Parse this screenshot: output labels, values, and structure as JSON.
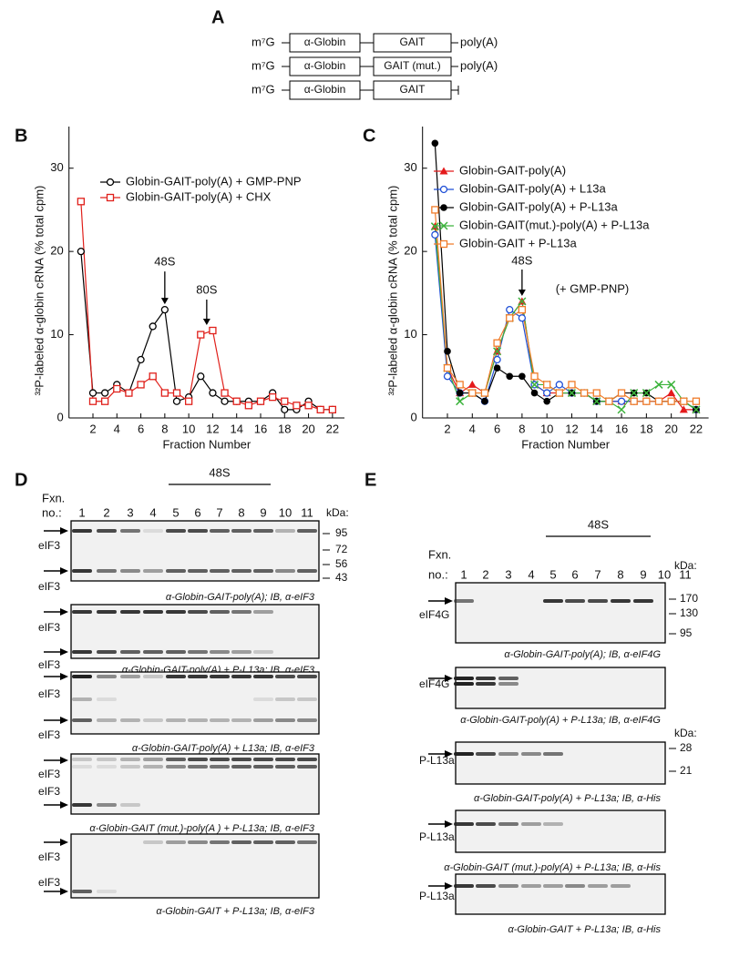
{
  "panel_a": {
    "letter": "A",
    "constructs": [
      {
        "cap": "m⁷G",
        "parts": [
          "α-Globin",
          "GAIT"
        ],
        "tail": "poly(A)"
      },
      {
        "cap": "m⁷G",
        "parts": [
          "α-Globin",
          "GAIT (mut.)"
        ],
        "tail": "poly(A)"
      },
      {
        "cap": "m⁷G",
        "parts": [
          "α-Globin",
          "GAIT"
        ]
      }
    ]
  },
  "chart_data": [
    {
      "letter": "B",
      "type": "line",
      "xlabel": "Fraction Number",
      "ylabel": "³²P-labeled α-globin cRNA (% total cpm)",
      "x": [
        1,
        2,
        3,
        4,
        5,
        6,
        7,
        8,
        9,
        10,
        11,
        12,
        13,
        14,
        15,
        16,
        17,
        18,
        19,
        20,
        21,
        22
      ],
      "series": [
        {
          "name": "Globin-GAIT-poly(A) + GMP-PNP",
          "color": "#000000",
          "marker": "circle-open",
          "values": [
            20,
            3,
            3,
            4,
            3,
            7,
            11,
            13,
            2,
            2.5,
            5,
            3,
            2,
            2,
            2,
            2,
            3,
            1,
            1,
            2,
            1,
            1
          ]
        },
        {
          "name": "Globin-GAIT-poly(A) + CHX",
          "color": "#e0201b",
          "marker": "square-open",
          "values": [
            26,
            2,
            2,
            3.5,
            3,
            4,
            5,
            3,
            3,
            2,
            10,
            10.5,
            3,
            2,
            1.5,
            2,
            2.5,
            2,
            1.5,
            1.5,
            1,
            1
          ]
        }
      ],
      "annotations": [
        "48S",
        "80S"
      ],
      "xlim": [
        0,
        23
      ],
      "ylim": [
        0,
        35
      ],
      "xticks": [
        2,
        4,
        6,
        8,
        10,
        12,
        14,
        16,
        18,
        20,
        22
      ],
      "yticks": [
        0,
        10,
        20,
        30
      ]
    },
    {
      "letter": "C",
      "type": "line",
      "xlabel": "Fraction Number",
      "ylabel": "³²P-labeled α-globin cRNA (% total cpm)",
      "x": [
        1,
        2,
        3,
        4,
        5,
        6,
        7,
        8,
        9,
        10,
        11,
        12,
        13,
        14,
        15,
        16,
        17,
        18,
        19,
        20,
        21,
        22
      ],
      "series": [
        {
          "name": "Globin-GAIT-poly(A)",
          "color": "#e41a1c",
          "marker": "triangle",
          "values": [
            23,
            6,
            3,
            4,
            3,
            8,
            12,
            14,
            4,
            3,
            3,
            3,
            3,
            2,
            2,
            2,
            2,
            2,
            2,
            3,
            1,
            1
          ]
        },
        {
          "name": "Globin-GAIT-poly(A) + L13a",
          "color": "#1f4fd6",
          "marker": "circle-open",
          "values": [
            22,
            5,
            3,
            3,
            2,
            7,
            13,
            12,
            4,
            3,
            4,
            3,
            3,
            2,
            2,
            2,
            2,
            2,
            2,
            2,
            2,
            1
          ]
        },
        {
          "name": "Globin-GAIT-poly(A) + P-L13a",
          "color": "#000000",
          "marker": "circle",
          "values": [
            33,
            8,
            3,
            3,
            2,
            6,
            5,
            5,
            3,
            2,
            3,
            3,
            3,
            2,
            2,
            3,
            3,
            3,
            2,
            2,
            2,
            1
          ]
        },
        {
          "name": "Globin-GAIT(mut.)-poly(A) + P-L13a",
          "color": "#3cb33c",
          "marker": "x",
          "values": [
            23,
            6,
            2,
            3,
            3,
            8,
            12,
            14,
            4,
            4,
            3,
            3,
            3,
            2,
            2,
            1,
            3,
            3,
            4,
            4,
            2,
            1
          ]
        },
        {
          "name": "Globin-GAIT + P-L13a",
          "color": "#f07c2a",
          "marker": "square-open",
          "values": [
            25,
            6,
            4,
            3,
            3,
            9,
            12,
            13,
            5,
            4,
            3,
            4,
            3,
            3,
            2,
            3,
            2,
            2,
            2,
            2,
            2,
            2
          ]
        }
      ],
      "annotations": [
        "48S",
        "(+ GMP-PNP)"
      ],
      "xlim": [
        0,
        23
      ],
      "ylim": [
        0,
        35
      ],
      "xticks": [
        2,
        4,
        6,
        8,
        10,
        12,
        14,
        16,
        18,
        20,
        22
      ],
      "yticks": [
        0,
        10,
        20,
        30
      ]
    }
  ],
  "panel_d": {
    "letter": "D",
    "fraction_label": [
      "Fxn.",
      "no.:"
    ],
    "lanes": [
      1,
      2,
      3,
      4,
      5,
      6,
      7,
      8,
      9,
      10,
      11
    ],
    "peak_label": "48S",
    "kda_label": "kDa:",
    "kda_markers": [
      95,
      72,
      56,
      43
    ],
    "blots": [
      {
        "labels": [
          "eIF3",
          "eIF3"
        ],
        "caption": "α-Globin-GAIT-poly(A); IB, α-eIF3"
      },
      {
        "labels": [
          "eIF3",
          "eIF3"
        ],
        "caption": "α-Globin-GAIT-poly(A) + P-L13a; IB, α-eIF3"
      },
      {
        "labels": [
          "eIF3",
          "eIF3"
        ],
        "caption": "α-Globin-GAIT-poly(A) + L13a; IB, α-eIF3"
      },
      {
        "labels": [
          "eIF3",
          "eIF3"
        ],
        "caption": "α-Globin-GAIT (mut.)-poly(A ) + P-L13a; IB, α-eIF3"
      },
      {
        "labels": [
          "eIF3",
          "eIF3"
        ],
        "caption": "α-Globin-GAIT + P-L13a; IB, α-eIF3"
      }
    ]
  },
  "panel_e": {
    "letter": "E",
    "fraction_label": [
      "Fxn.",
      "no.:"
    ],
    "lanes": [
      1,
      2,
      3,
      4,
      5,
      6,
      7,
      8,
      9,
      10,
      11
    ],
    "peak_label": "48S",
    "kda_groups": [
      {
        "label": "kDa:",
        "markers": [
          170,
          130,
          95
        ]
      },
      {
        "label": "kDa:",
        "markers": [
          28,
          21
        ]
      }
    ],
    "blots": [
      {
        "labels": [
          "eIF4G"
        ],
        "caption": "α-Globin-GAIT-poly(A); IB, α-eIF4G"
      },
      {
        "labels": [
          "eIF4G"
        ],
        "caption": "α-Globin-GAIT-poly(A) + P-L13a; IB, α-eIF4G"
      },
      {
        "labels": [
          "P-L13a"
        ],
        "caption": "α-Globin-GAIT-poly(A) + P-L13a; IB, α-His"
      },
      {
        "labels": [
          "P-L13a"
        ],
        "caption": "α-Globin-GAIT (mut.)-poly(A) + P-L13a; IB, α-His"
      },
      {
        "labels": [
          "P-L13a"
        ],
        "caption": "α-Globin-GAIT + P-L13a; IB, α-His"
      }
    ]
  }
}
